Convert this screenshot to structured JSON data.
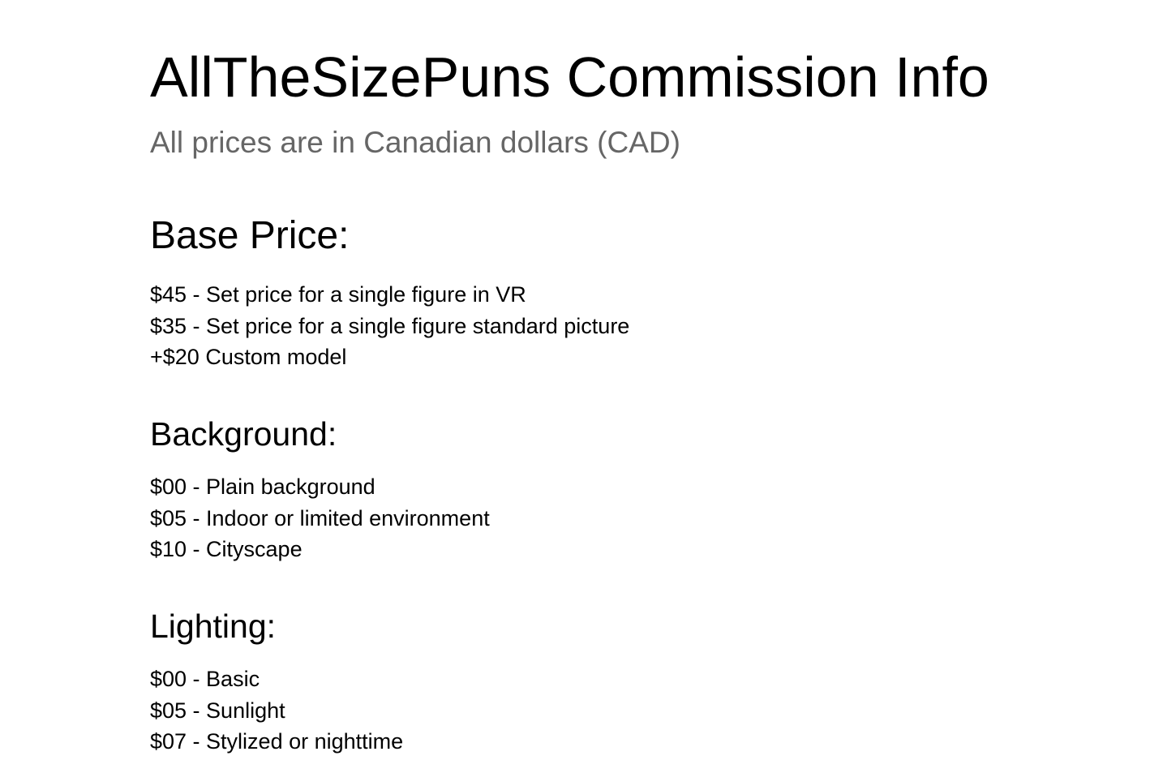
{
  "title": "AllTheSizePuns Commission Info",
  "subtitle": "All prices are in Canadian dollars (CAD)",
  "sections": [
    {
      "heading": "Base Price:",
      "items": [
        "$45 - Set price for a single figure in VR",
        "$35 - Set price for a single figure standard picture",
        "+$20 Custom model"
      ]
    },
    {
      "heading": "Background:",
      "items": [
        "$00 - Plain background",
        "$05 - Indoor or limited environment",
        "$10 - Cityscape"
      ]
    },
    {
      "heading": "Lighting:",
      "items": [
        "$00 - Basic",
        "$05 - Sunlight",
        "$07 - Stylized or nighttime"
      ]
    }
  ]
}
